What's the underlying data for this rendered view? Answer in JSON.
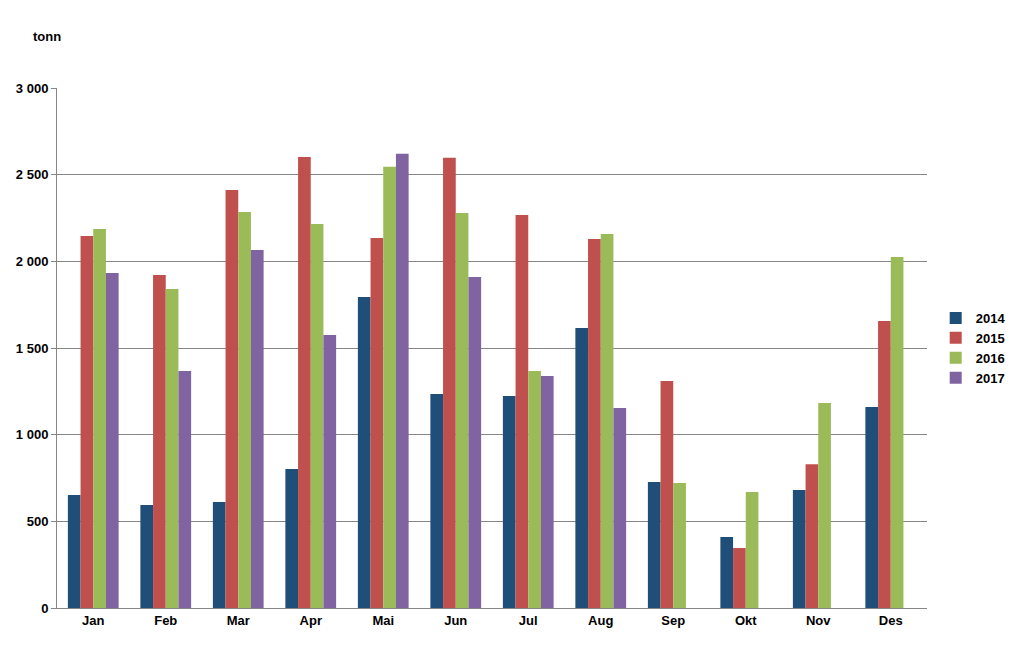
{
  "chart_data": {
    "type": "bar",
    "y_label": "tonn",
    "categories": [
      "Jan",
      "Feb",
      "Mar",
      "Apr",
      "Mai",
      "Jun",
      "Jul",
      "Aug",
      "Sep",
      "Okt",
      "Nov",
      "Des"
    ],
    "series": [
      {
        "name": "2014",
        "color": "#1f4e79",
        "values": [
          652,
          594,
          612,
          802,
          1794,
          1235,
          1223,
          1616,
          727,
          410,
          681,
          1160
        ]
      },
      {
        "name": "2015",
        "color": "#c0504d",
        "values": [
          2146,
          1921,
          2412,
          2602,
          2135,
          2597,
          2268,
          2129,
          1310,
          346,
          830,
          1656
        ]
      },
      {
        "name": "2016",
        "color": "#9bbb59",
        "values": [
          2187,
          1840,
          2285,
          2216,
          2545,
          2279,
          1367,
          2158,
          721,
          669,
          1183,
          2025
        ]
      },
      {
        "name": "2017",
        "color": "#8064a2",
        "values": [
          1933,
          1367,
          2066,
          1575,
          2620,
          1910,
          1339,
          1154,
          null,
          null,
          null,
          null
        ]
      }
    ],
    "ylim": [
      0,
      3000
    ],
    "yticks": [
      0,
      500,
      {
        "value": 1000,
        "label": "1 000"
      },
      {
        "value": 1500,
        "label": "1 500"
      },
      {
        "value": 2000,
        "label": "2 000"
      },
      {
        "value": 2500,
        "label": "2 500"
      },
      {
        "value": 3000,
        "label": "3 000"
      }
    ],
    "grid": true,
    "legend": "right"
  }
}
